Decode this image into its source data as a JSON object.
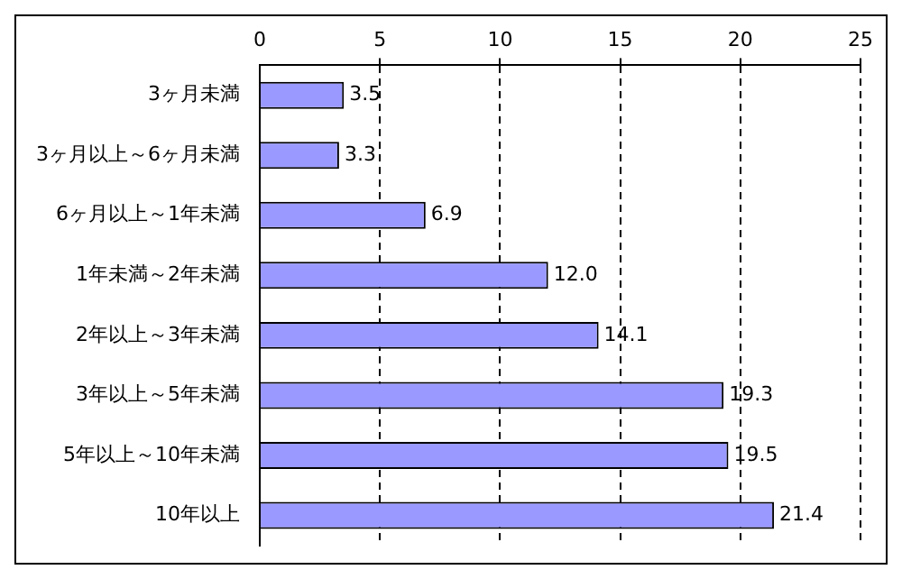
{
  "chart_data": {
    "type": "bar",
    "orientation": "horizontal",
    "categories": [
      "3ヶ月未満",
      "3ヶ月以上～6ヶ月未満",
      "6ヶ月以上～1年未満",
      "1年未満～2年未満",
      "2年以上～3年未満",
      "3年以上～5年未満",
      "5年以上～10年未満",
      "10年以上"
    ],
    "values": [
      3.5,
      3.3,
      6.9,
      12.0,
      14.1,
      19.3,
      19.5,
      21.4
    ],
    "value_labels": [
      "3.5",
      "3.3",
      "6.9",
      "12.0",
      "14.1",
      "19.3",
      "19.5",
      "21.4"
    ],
    "color": "#9999ff",
    "xlim": [
      0,
      25
    ],
    "xticks": [
      0,
      5,
      10,
      15,
      20,
      25
    ],
    "grid": "x",
    "legend": false,
    "line_style": "dashed"
  }
}
